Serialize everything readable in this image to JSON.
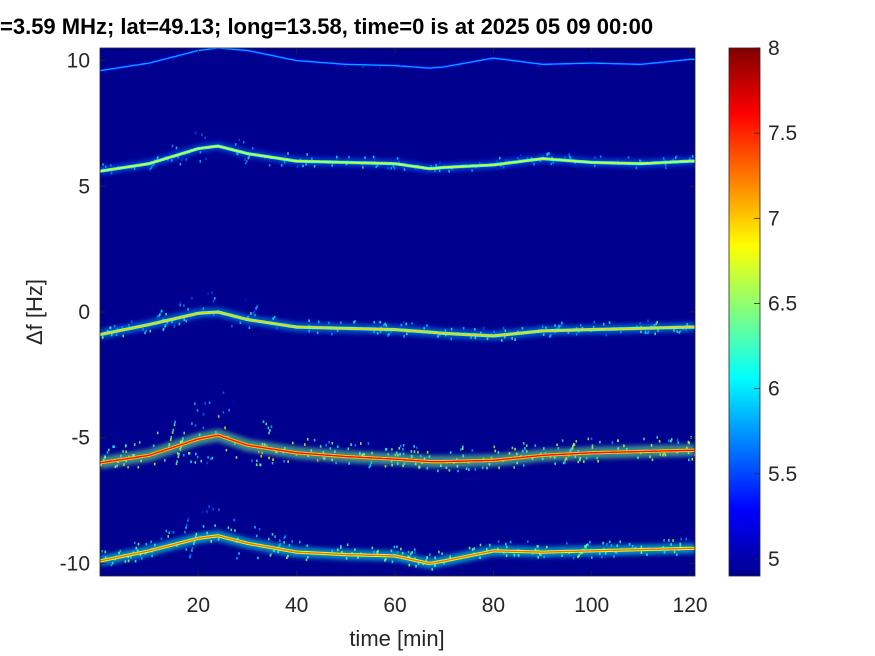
{
  "title": "=3.59 MHz;  lat=49.13; long=13.58, time=0 is at 2025 05 09 00:00",
  "chart_data": {
    "type": "heatmap",
    "title": "=3.59 MHz;  lat=49.13; long=13.58, time=0 is at 2025 05 09 00:00",
    "xlabel": "time [min]",
    "ylabel": "Δf [Hz]",
    "xlim": [
      0,
      121
    ],
    "ylim": [
      -10.5,
      10.5
    ],
    "x_ticks": [
      20,
      40,
      60,
      80,
      100,
      120
    ],
    "y_ticks": [
      10,
      5,
      0,
      -5,
      -10
    ],
    "colorbar": {
      "colormap": "jet",
      "range": [
        4.9,
        8
      ],
      "ticks": [
        8,
        7.5,
        7,
        6.5,
        6,
        5.5,
        5
      ]
    },
    "background_color": "#00008f",
    "grid": false,
    "series": [
      {
        "x": [
          0,
          10,
          20,
          24,
          30,
          40,
          50,
          60,
          67,
          70,
          80,
          90,
          100,
          110,
          120
        ],
        "y": [
          9.6,
          9.9,
          10.4,
          10.5,
          10.4,
          10.0,
          9.85,
          9.8,
          9.7,
          9.75,
          10.1,
          9.85,
          9.9,
          9.85,
          10.05
        ],
        "intensity": 5.8,
        "spread": 0.15
      },
      {
        "x": [
          0,
          10,
          20,
          24,
          30,
          40,
          50,
          60,
          67,
          70,
          80,
          90,
          100,
          110,
          120
        ],
        "y": [
          5.6,
          5.9,
          6.5,
          6.6,
          6.3,
          6.0,
          5.95,
          5.9,
          5.7,
          5.75,
          5.85,
          6.1,
          5.95,
          5.9,
          6.0
        ],
        "intensity": 6.8,
        "spread": 0.6
      },
      {
        "x": [
          0,
          10,
          20,
          24,
          30,
          40,
          50,
          60,
          67,
          70,
          80,
          90,
          100,
          110,
          120
        ],
        "y": [
          -0.9,
          -0.5,
          -0.05,
          0.0,
          -0.3,
          -0.6,
          -0.65,
          -0.7,
          -0.8,
          -0.85,
          -0.95,
          -0.75,
          -0.7,
          -0.65,
          -0.6
        ],
        "intensity": 7.0,
        "spread": 0.7
      },
      {
        "x": [
          0,
          10,
          20,
          24,
          30,
          40,
          50,
          60,
          67,
          70,
          80,
          90,
          100,
          110,
          120
        ],
        "y": [
          -6.0,
          -5.7,
          -5.05,
          -4.9,
          -5.3,
          -5.6,
          -5.75,
          -5.85,
          -5.95,
          -5.95,
          -5.9,
          -5.7,
          -5.6,
          -5.55,
          -5.5
        ],
        "intensity": 7.6,
        "spread": 1.2
      },
      {
        "x": [
          0,
          10,
          20,
          24,
          30,
          40,
          50,
          60,
          67,
          70,
          80,
          90,
          100,
          110,
          120
        ],
        "y": [
          -9.9,
          -9.5,
          -9.0,
          -8.9,
          -9.2,
          -9.55,
          -9.65,
          -9.7,
          -10.0,
          -9.9,
          -9.5,
          -9.55,
          -9.5,
          -9.45,
          -9.4
        ],
        "intensity": 7.3,
        "spread": 0.9
      }
    ]
  }
}
